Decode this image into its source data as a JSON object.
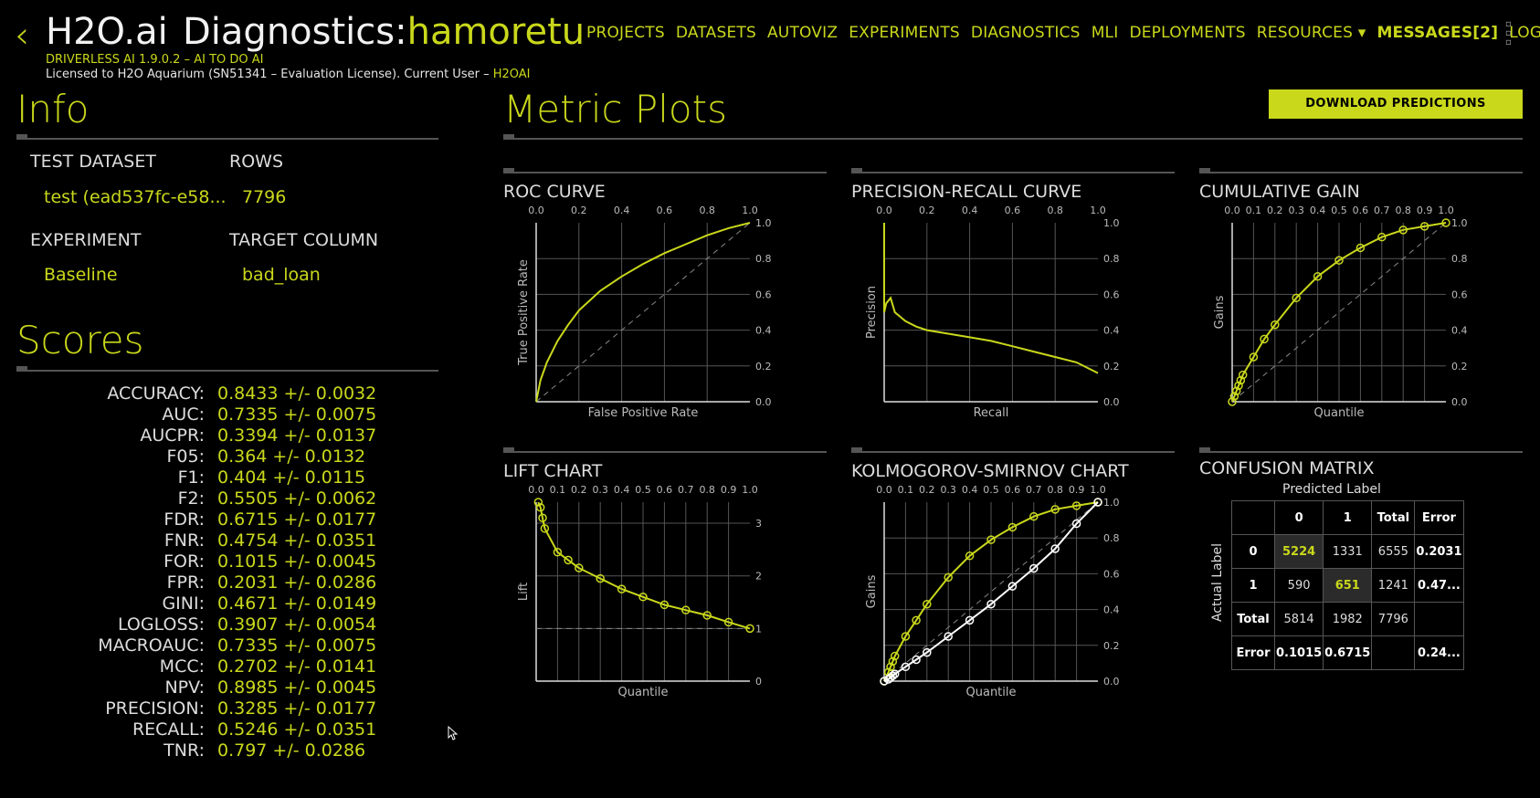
{
  "header": {
    "back_icon": "chevron-left-icon",
    "brand": "H2O.ai",
    "title_prefix": "Diagnostics:",
    "title_name": "hamoretu",
    "version": "DRIVERLESS AI 1.9.0.2 – AI TO DO AI",
    "license_text": "Licensed to H2O Aquarium (SN51341 – Evaluation License). Current User – ",
    "license_user": "H2OAI"
  },
  "nav": {
    "items": [
      "PROJECTS",
      "DATASETS",
      "AUTOVIZ",
      "EXPERIMENTS",
      "DIAGNOSTICS",
      "MLI",
      "DEPLOYMENTS",
      "RESOURCES"
    ],
    "resources_icon": "caret-down-icon",
    "messages": "MESSAGES[2]",
    "logout": "LOGOUT",
    "menu_icon": "kebab-menu-icon"
  },
  "info": {
    "title": "Info",
    "test_dataset_label": "TEST DATASET",
    "test_dataset_value": "test (ead537fc-e58...",
    "rows_label": "ROWS",
    "rows_value": "7796",
    "experiment_label": "EXPERIMENT",
    "experiment_value": "Baseline",
    "target_label": "TARGET COLUMN",
    "target_value": "bad_loan"
  },
  "scores": {
    "title": "Scores",
    "rows": [
      {
        "k": "ACCURACY:",
        "v": "0.8433 +/- 0.0032"
      },
      {
        "k": "AUC:",
        "v": "0.7335 +/- 0.0075"
      },
      {
        "k": "AUCPR:",
        "v": "0.3394 +/- 0.0137"
      },
      {
        "k": "F05:",
        "v": "0.364 +/- 0.0132"
      },
      {
        "k": "F1:",
        "v": "0.404 +/- 0.0115"
      },
      {
        "k": "F2:",
        "v": "0.5505 +/- 0.0062"
      },
      {
        "k": "FDR:",
        "v": "0.6715 +/- 0.0177"
      },
      {
        "k": "FNR:",
        "v": "0.4754 +/- 0.0351"
      },
      {
        "k": "FOR:",
        "v": "0.1015 +/- 0.0045"
      },
      {
        "k": "FPR:",
        "v": "0.2031 +/- 0.0286"
      },
      {
        "k": "GINI:",
        "v": "0.4671 +/- 0.0149"
      },
      {
        "k": "LOGLOSS:",
        "v": "0.3907 +/- 0.0054"
      },
      {
        "k": "MACROAUC:",
        "v": "0.7335 +/- 0.0075"
      },
      {
        "k": "MCC:",
        "v": "0.2702 +/- 0.0141"
      },
      {
        "k": "NPV:",
        "v": "0.8985 +/- 0.0045"
      },
      {
        "k": "PRECISION:",
        "v": "0.3285 +/- 0.0177"
      },
      {
        "k": "RECALL:",
        "v": "0.5246 +/- 0.0351"
      },
      {
        "k": "TNR:",
        "v": "0.797 +/- 0.0286"
      }
    ]
  },
  "metric_plots": {
    "title": "Metric Plots",
    "download_label": "DOWNLOAD PREDICTIONS"
  },
  "colors": {
    "accent": "#c9d81b",
    "background": "#000000",
    "grid": "#666666"
  },
  "chart_data": [
    {
      "type": "line",
      "title": "ROC CURVE",
      "xlabel": "False Positive Rate",
      "ylabel": "True Positive Rate",
      "xlim": [
        0,
        1
      ],
      "ylim": [
        0,
        1
      ],
      "xticks": [
        "0.0",
        "0.2",
        "0.4",
        "0.6",
        "0.8",
        "1.0"
      ],
      "yticks": [
        "0.0",
        "0.2",
        "0.4",
        "0.6",
        "0.8",
        "1.0"
      ],
      "series": [
        {
          "x": [
            0,
            0.02,
            0.05,
            0.1,
            0.15,
            0.2,
            0.3,
            0.4,
            0.5,
            0.6,
            0.7,
            0.8,
            0.9,
            1.0
          ],
          "y": [
            0,
            0.12,
            0.22,
            0.34,
            0.43,
            0.51,
            0.62,
            0.7,
            0.77,
            0.83,
            0.88,
            0.93,
            0.97,
            1.0
          ]
        }
      ],
      "diagonal": true
    },
    {
      "type": "line",
      "title": "PRECISION-RECALL CURVE",
      "xlabel": "Recall",
      "ylabel": "Precision",
      "xlim": [
        0,
        1
      ],
      "ylim": [
        0,
        1
      ],
      "xticks": [
        "0.0",
        "0.2",
        "0.4",
        "0.6",
        "0.8",
        "1.0"
      ],
      "yticks": [
        "0.0",
        "0.2",
        "0.4",
        "0.6",
        "0.8",
        "1.0"
      ],
      "series": [
        {
          "x": [
            0,
            0,
            0.01,
            0.03,
            0.05,
            0.08,
            0.1,
            0.15,
            0.2,
            0.3,
            0.4,
            0.5,
            0.6,
            0.7,
            0.8,
            0.9,
            1.0
          ],
          "y": [
            1.0,
            0.5,
            0.55,
            0.58,
            0.5,
            0.47,
            0.45,
            0.42,
            0.4,
            0.38,
            0.36,
            0.34,
            0.31,
            0.28,
            0.25,
            0.22,
            0.16
          ]
        }
      ]
    },
    {
      "type": "line",
      "title": "CUMULATIVE GAIN",
      "xlabel": "Quantile",
      "ylabel": "Gains",
      "xlim": [
        0,
        1
      ],
      "ylim": [
        0,
        1
      ],
      "xticks": [
        "0.0",
        "0.1",
        "0.2",
        "0.3",
        "0.4",
        "0.5",
        "0.6",
        "0.7",
        "0.8",
        "0.9",
        "1.0"
      ],
      "yticks": [
        "0.0",
        "0.2",
        "0.4",
        "0.6",
        "0.8",
        "1.0"
      ],
      "series": [
        {
          "x": [
            0,
            0.01,
            0.02,
            0.03,
            0.04,
            0.05,
            0.1,
            0.15,
            0.2,
            0.3,
            0.4,
            0.5,
            0.6,
            0.7,
            0.8,
            0.9,
            1.0
          ],
          "y": [
            0,
            0.03,
            0.06,
            0.09,
            0.12,
            0.15,
            0.25,
            0.35,
            0.43,
            0.58,
            0.7,
            0.79,
            0.86,
            0.92,
            0.96,
            0.98,
            1.0
          ]
        }
      ],
      "diagonal": true
    },
    {
      "type": "line",
      "title": "LIFT CHART",
      "xlabel": "Quantile",
      "ylabel": "Lift",
      "xlim": [
        0,
        1
      ],
      "ylim": [
        0,
        3.4
      ],
      "xticks": [
        "0.0",
        "0.1",
        "0.2",
        "0.3",
        "0.4",
        "0.5",
        "0.6",
        "0.7",
        "0.8",
        "0.9",
        "1.0"
      ],
      "yticks": [
        "0",
        "1",
        "2",
        "3"
      ],
      "series": [
        {
          "x": [
            0.01,
            0.02,
            0.03,
            0.04,
            0.1,
            0.15,
            0.2,
            0.3,
            0.4,
            0.5,
            0.6,
            0.7,
            0.8,
            0.9,
            1.0
          ],
          "y": [
            3.4,
            3.3,
            3.1,
            2.9,
            2.45,
            2.3,
            2.15,
            1.95,
            1.75,
            1.6,
            1.45,
            1.35,
            1.25,
            1.12,
            1.0
          ]
        }
      ],
      "baseline": 1
    },
    {
      "type": "line",
      "title": "KOLMOGOROV-SMIRNOV CHART",
      "xlabel": "Quantile",
      "ylabel": "Gains",
      "xlim": [
        0,
        1
      ],
      "ylim": [
        0,
        1
      ],
      "xticks": [
        "0.0",
        "0.1",
        "0.2",
        "0.3",
        "0.4",
        "0.5",
        "0.6",
        "0.7",
        "0.8",
        "0.9",
        "1.0"
      ],
      "yticks": [
        "0.0",
        "0.2",
        "0.4",
        "0.6",
        "0.8",
        "1.0"
      ],
      "series": [
        {
          "x": [
            0,
            0.02,
            0.03,
            0.04,
            0.05,
            0.1,
            0.15,
            0.2,
            0.3,
            0.4,
            0.5,
            0.6,
            0.7,
            0.8,
            0.9,
            1.0
          ],
          "y": [
            0,
            0.05,
            0.08,
            0.11,
            0.14,
            0.25,
            0.34,
            0.43,
            0.58,
            0.7,
            0.79,
            0.86,
            0.92,
            0.96,
            0.98,
            1.0
          ],
          "color": "#c9d81b"
        },
        {
          "x": [
            0,
            0.02,
            0.03,
            0.04,
            0.05,
            0.1,
            0.15,
            0.2,
            0.3,
            0.4,
            0.5,
            0.6,
            0.7,
            0.8,
            0.9,
            1.0
          ],
          "y": [
            0,
            0.01,
            0.02,
            0.03,
            0.04,
            0.08,
            0.12,
            0.16,
            0.25,
            0.34,
            0.43,
            0.53,
            0.63,
            0.74,
            0.88,
            1.0
          ],
          "color": "#ffffff"
        }
      ],
      "diagonal": true
    }
  ],
  "confusion_matrix": {
    "title": "CONFUSION MATRIX",
    "predicted_label": "Predicted Label",
    "actual_label": "Actual Label",
    "header": [
      "",
      "0",
      "1",
      "Total",
      "Error"
    ],
    "rows": [
      [
        "0",
        "5224",
        "1331",
        "6555",
        "0.2031"
      ],
      [
        "1",
        "590",
        "651",
        "1241",
        "0.47..."
      ],
      [
        "Total",
        "5814",
        "1982",
        "7796",
        ""
      ],
      [
        "Error",
        "0.1015",
        "0.6715",
        "",
        "0.24..."
      ]
    ]
  }
}
